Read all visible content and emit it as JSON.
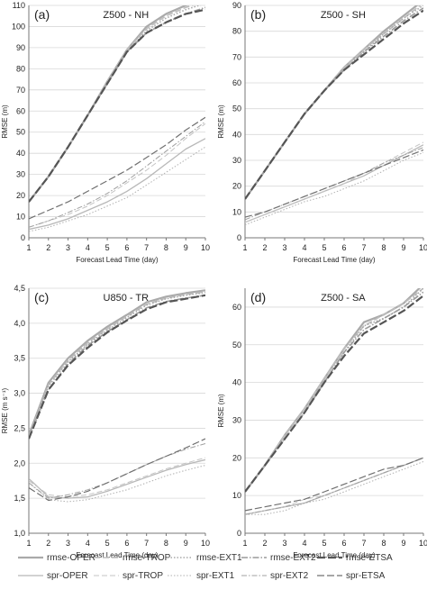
{
  "chart_data": [
    {
      "type": "line",
      "panel_label": "(a)",
      "title": "Z500 - NH",
      "xlabel": "Forecast Lead Time (day)",
      "ylabel": "RMSE (m)",
      "xlim": [
        1,
        10
      ],
      "ylim": [
        0,
        110
      ],
      "yticks": [
        "0",
        "10",
        "20",
        "30",
        "40",
        "50",
        "60",
        "70",
        "80",
        "90",
        "100",
        "110"
      ],
      "xticks": [
        "1",
        "2",
        "3",
        "4",
        "5",
        "6",
        "7",
        "8",
        "9",
        "10"
      ],
      "x": [
        1,
        2,
        3,
        4,
        5,
        6,
        7,
        8,
        9,
        10
      ],
      "series": [
        {
          "name": "rmse-OPER",
          "values": [
            17,
            29,
            43,
            58,
            74,
            89,
            100,
            106,
            110,
            113
          ]
        },
        {
          "name": "rmse-TROP",
          "values": [
            17,
            29,
            43,
            58,
            74,
            89,
            99,
            105,
            109,
            112
          ]
        },
        {
          "name": "rmse-EXT1",
          "values": [
            17,
            29,
            43,
            58,
            73,
            88,
            98,
            104,
            108,
            111
          ]
        },
        {
          "name": "rmse-EXT2",
          "values": [
            17,
            29,
            43,
            58,
            73,
            88,
            97,
            102,
            106,
            109
          ]
        },
        {
          "name": "rmse-ETSA",
          "values": [
            17,
            29,
            43,
            58,
            73,
            88,
            97,
            102,
            106,
            108
          ]
        },
        {
          "name": "spr-OPER",
          "values": [
            4,
            6,
            9,
            13,
            17,
            22,
            28,
            35,
            42,
            47
          ]
        },
        {
          "name": "spr-TROP",
          "values": [
            5,
            8,
            11,
            15,
            20,
            26,
            32,
            39,
            47,
            54
          ]
        },
        {
          "name": "spr-EXT1",
          "values": [
            3,
            5,
            8,
            11,
            15,
            19,
            25,
            31,
            37,
            43
          ]
        },
        {
          "name": "spr-EXT2",
          "values": [
            5,
            8,
            12,
            16,
            21,
            27,
            34,
            41,
            48,
            55
          ]
        },
        {
          "name": "spr-ETSA",
          "values": [
            9,
            13,
            17,
            22,
            27,
            32,
            38,
            44,
            51,
            57
          ]
        }
      ]
    },
    {
      "type": "line",
      "panel_label": "(b)",
      "title": "Z500 - SH",
      "xlabel": "Forecast Lead Time (day)",
      "ylabel": "RMSE (m)",
      "xlim": [
        1,
        10
      ],
      "ylim": [
        0,
        90
      ],
      "yticks": [
        "0",
        "10",
        "20",
        "30",
        "40",
        "50",
        "60",
        "70",
        "80",
        "90"
      ],
      "xticks": [
        "1",
        "2",
        "3",
        "4",
        "5",
        "6",
        "7",
        "8",
        "9",
        "10"
      ],
      "x": [
        1,
        2,
        3,
        4,
        5,
        6,
        7,
        8,
        9,
        10
      ],
      "series": [
        {
          "name": "rmse-OPER",
          "values": [
            15,
            26,
            37,
            48,
            57,
            66,
            73,
            80,
            86,
            92
          ]
        },
        {
          "name": "rmse-TROP",
          "values": [
            15,
            26,
            37,
            48,
            57,
            66,
            73,
            79,
            85,
            91
          ]
        },
        {
          "name": "rmse-EXT1",
          "values": [
            15,
            26,
            37,
            48,
            57,
            65,
            72,
            79,
            85,
            90
          ]
        },
        {
          "name": "rmse-EXT2",
          "values": [
            15,
            26,
            37,
            48,
            57,
            65,
            72,
            78,
            84,
            89
          ]
        },
        {
          "name": "rmse-ETSA",
          "values": [
            15,
            26,
            37,
            48,
            57,
            65,
            71,
            77,
            83,
            88
          ]
        },
        {
          "name": "spr-OPER",
          "values": [
            6,
            9,
            12,
            15,
            18,
            21,
            24,
            28,
            32,
            36
          ]
        },
        {
          "name": "spr-TROP",
          "values": [
            6,
            9,
            12,
            15,
            18,
            21,
            25,
            29,
            33,
            37
          ]
        },
        {
          "name": "spr-EXT1",
          "values": [
            5,
            8,
            11,
            14,
            16,
            19,
            22,
            26,
            30,
            33
          ]
        },
        {
          "name": "spr-EXT2",
          "values": [
            7,
            10,
            13,
            16,
            19,
            22,
            25,
            29,
            32,
            35
          ]
        },
        {
          "name": "spr-ETSA",
          "values": [
            8,
            10,
            13,
            16,
            19,
            22,
            25,
            28,
            31,
            34
          ]
        }
      ]
    },
    {
      "type": "line",
      "panel_label": "(c)",
      "title": "U850 - TR",
      "xlabel": "Forecast Lead Time (day)",
      "ylabel": "RMSE (m s⁻¹)",
      "xlim": [
        1,
        10
      ],
      "ylim": [
        1.0,
        4.5
      ],
      "yticks": [
        "1,0",
        "1,5",
        "2,0",
        "2,5",
        "3,0",
        "3,5",
        "4,0",
        "4,5"
      ],
      "xticks": [
        "1",
        "2",
        "3",
        "4",
        "5",
        "6",
        "7",
        "8",
        "9",
        "10"
      ],
      "x": [
        1,
        2,
        3,
        4,
        5,
        6,
        7,
        8,
        9,
        10
      ],
      "series": [
        {
          "name": "rmse-OPER",
          "values": [
            2.4,
            3.15,
            3.5,
            3.75,
            3.95,
            4.12,
            4.3,
            4.38,
            4.43,
            4.47
          ]
        },
        {
          "name": "rmse-TROP",
          "values": [
            2.38,
            3.12,
            3.47,
            3.72,
            3.92,
            4.1,
            4.27,
            4.36,
            4.41,
            4.45
          ]
        },
        {
          "name": "rmse-EXT1",
          "values": [
            2.37,
            3.1,
            3.45,
            3.7,
            3.9,
            4.08,
            4.26,
            4.35,
            4.4,
            4.44
          ]
        },
        {
          "name": "rmse-EXT2",
          "values": [
            2.35,
            3.05,
            3.42,
            3.68,
            3.88,
            4.05,
            4.22,
            4.31,
            4.36,
            4.4
          ]
        },
        {
          "name": "rmse-ETSA",
          "values": [
            2.35,
            3.05,
            3.4,
            3.65,
            3.87,
            4.04,
            4.2,
            4.3,
            4.35,
            4.4
          ]
        },
        {
          "name": "spr-OPER",
          "values": [
            1.78,
            1.52,
            1.5,
            1.52,
            1.6,
            1.7,
            1.8,
            1.9,
            1.98,
            2.05
          ]
        },
        {
          "name": "spr-TROP",
          "values": [
            1.75,
            1.55,
            1.52,
            1.55,
            1.62,
            1.72,
            1.82,
            1.92,
            2.0,
            2.08
          ]
        },
        {
          "name": "spr-EXT1",
          "values": [
            1.72,
            1.48,
            1.45,
            1.48,
            1.55,
            1.62,
            1.72,
            1.82,
            1.9,
            1.97
          ]
        },
        {
          "name": "spr-EXT2",
          "values": [
            1.72,
            1.5,
            1.55,
            1.62,
            1.72,
            1.85,
            1.98,
            2.1,
            2.2,
            2.28
          ]
        },
        {
          "name": "spr-ETSA",
          "values": [
            1.65,
            1.47,
            1.52,
            1.6,
            1.72,
            1.85,
            1.98,
            2.1,
            2.22,
            2.35
          ]
        }
      ]
    },
    {
      "type": "line",
      "panel_label": "(d)",
      "title": "Z500 - SA",
      "xlabel": "Forecast Lead Time (day)",
      "ylabel": "RMSE (m)",
      "xlim": [
        1,
        10
      ],
      "ylim": [
        0,
        65
      ],
      "yticks": [
        "0",
        "10",
        "20",
        "30",
        "40",
        "50",
        "60"
      ],
      "xticks": [
        "1",
        "2",
        "3",
        "4",
        "5",
        "6",
        "7",
        "8",
        "9",
        "10"
      ],
      "x": [
        1,
        2,
        3,
        4,
        5,
        6,
        7,
        8,
        9,
        10
      ],
      "series": [
        {
          "name": "rmse-OPER",
          "values": [
            11,
            18,
            26,
            33,
            41,
            49,
            56,
            58,
            61,
            66
          ]
        },
        {
          "name": "rmse-TROP",
          "values": [
            11,
            18,
            26,
            33,
            41,
            49,
            55,
            58,
            61,
            65
          ]
        },
        {
          "name": "rmse-EXT1",
          "values": [
            11,
            18,
            25,
            32,
            40,
            48,
            55,
            57,
            60,
            65
          ]
        },
        {
          "name": "rmse-EXT2",
          "values": [
            11,
            18,
            25,
            32,
            40,
            48,
            54,
            57,
            60,
            64
          ]
        },
        {
          "name": "rmse-ETSA",
          "values": [
            11,
            18,
            25,
            32,
            40,
            47,
            53,
            56,
            59,
            63
          ]
        },
        {
          "name": "spr-OPER",
          "values": [
            5,
            6,
            7,
            8,
            10,
            12,
            14,
            16,
            18,
            20
          ]
        },
        {
          "name": "spr-TROP",
          "values": [
            5,
            6,
            7,
            9,
            10,
            12,
            14,
            16,
            18,
            20
          ]
        },
        {
          "name": "spr-EXT1",
          "values": [
            5,
            5,
            6,
            8,
            9,
            11,
            13,
            15,
            17,
            19
          ]
        },
        {
          "name": "spr-EXT2",
          "values": [
            5,
            6,
            7,
            8,
            10,
            12,
            14,
            16,
            18,
            20
          ]
        },
        {
          "name": "spr-ETSA",
          "values": [
            6,
            7,
            8,
            9,
            11,
            13,
            15,
            17,
            18,
            20
          ]
        }
      ]
    }
  ],
  "legend": {
    "entries": [
      "rmse-OPER",
      "rmse-TROP",
      "rmse-EXT1",
      "rmse-EXT2",
      "rmse-ETSA",
      "spr-OPER",
      "spr-TROP",
      "spr-EXT1",
      "spr-EXT2",
      "spr-ETSA"
    ]
  },
  "series_styles": {
    "rmse-OPER": {
      "color": "#aaaaaa",
      "dash": "",
      "width": 2.2
    },
    "rmse-TROP": {
      "color": "#bdbdbd",
      "dash": "7,3",
      "width": 1.6
    },
    "rmse-EXT1": {
      "color": "#a8a8a8",
      "dash": "1.5,2",
      "width": 1.6
    },
    "rmse-EXT2": {
      "color": "#9a9a9a",
      "dash": "7,2,1.5,2",
      "width": 1.6
    },
    "rmse-ETSA": {
      "color": "#555555",
      "dash": "9,3",
      "width": 2.2
    },
    "spr-OPER": {
      "color": "#b8b8b8",
      "dash": "",
      "width": 1.3
    },
    "spr-TROP": {
      "color": "#c4c4c4",
      "dash": "6,3",
      "width": 1.0
    },
    "spr-EXT1": {
      "color": "#b0b0b0",
      "dash": "1.5,2",
      "width": 1.0
    },
    "spr-EXT2": {
      "color": "#a0a0a0",
      "dash": "6,2,1.5,2",
      "width": 1.0
    },
    "spr-ETSA": {
      "color": "#707070",
      "dash": "8,3",
      "width": 1.2
    }
  }
}
